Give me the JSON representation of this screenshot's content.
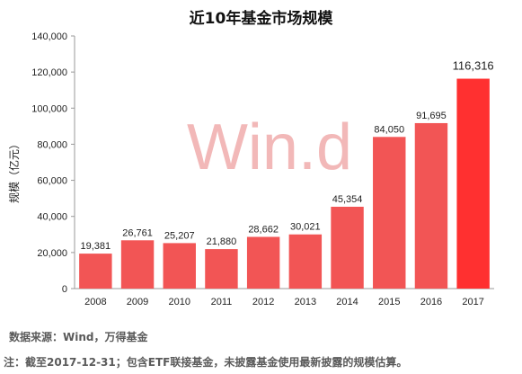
{
  "chart_data": {
    "type": "bar",
    "title": "近10年基金市场规模",
    "ylabel": "规模（亿元）",
    "xlabel": "",
    "ylim": [
      0,
      140000
    ],
    "yticks": [
      0,
      20000,
      40000,
      60000,
      80000,
      100000,
      120000,
      140000
    ],
    "ytick_labels": [
      "0",
      "20,000",
      "40,000",
      "60,000",
      "80,000",
      "100,000",
      "120,000",
      "140,000"
    ],
    "categories": [
      "2008",
      "2009",
      "2010",
      "2011",
      "2012",
      "2013",
      "2014",
      "2015",
      "2016",
      "2017"
    ],
    "values": [
      19381,
      26761,
      25207,
      21880,
      28662,
      30021,
      45354,
      84050,
      91695,
      116316
    ],
    "value_labels": [
      "19,381",
      "26,761",
      "25,207",
      "21,880",
      "28,662",
      "30,021",
      "45,354",
      "84,050",
      "91,695",
      "116,316"
    ],
    "grid": false,
    "legend": "none"
  },
  "watermark": "Win.d",
  "source": "数据来源：Wind，万得基金",
  "footnote": "注：截至2017-12-31；包含ETF联接基金，未披露基金使用最新披露的规模估算。",
  "colors": {
    "bar": "#f25555",
    "bar_highlight": "#ff3030",
    "axis": "#999999",
    "watermark": "#f2b8b8"
  }
}
